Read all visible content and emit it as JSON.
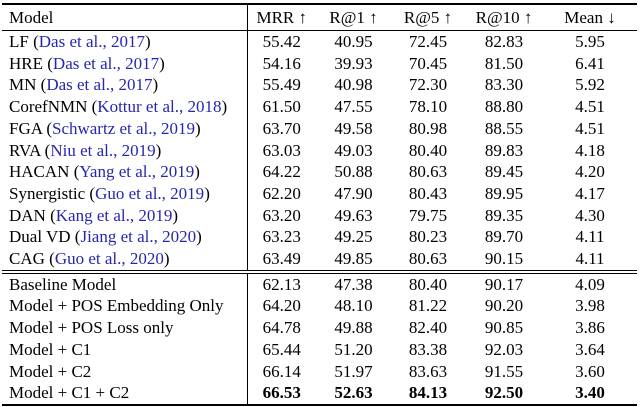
{
  "colors": {
    "citation_link": "#2626b0",
    "text": "#000000",
    "rule": "#000000",
    "background": "#ffffff"
  },
  "table": {
    "columns": [
      "Model",
      "MRR ↑",
      "R@1 ↑",
      "R@5 ↑",
      "R@10 ↑",
      "Mean ↓"
    ],
    "sections": [
      {
        "rows": [
          {
            "label": [
              {
                "text": "LF (",
                "style": "plain"
              },
              {
                "text": "Das et al., 2017",
                "style": "cite"
              },
              {
                "text": ")",
                "style": "plain"
              }
            ],
            "values": [
              "55.42",
              "40.95",
              "72.45",
              "82.83",
              "5.95"
            ]
          },
          {
            "label": [
              {
                "text": "HRE (",
                "style": "plain"
              },
              {
                "text": "Das et al., 2017",
                "style": "cite"
              },
              {
                "text": ")",
                "style": "plain"
              }
            ],
            "values": [
              "54.16",
              "39.93",
              "70.45",
              "81.50",
              "6.41"
            ]
          },
          {
            "label": [
              {
                "text": "MN (",
                "style": "plain"
              },
              {
                "text": "Das et al., 2017",
                "style": "cite"
              },
              {
                "text": ")",
                "style": "plain"
              }
            ],
            "values": [
              "55.49",
              "40.98",
              "72.30",
              "83.30",
              "5.92"
            ]
          },
          {
            "label": [
              {
                "text": "CorefNMN (",
                "style": "plain"
              },
              {
                "text": "Kottur et al., 2018",
                "style": "cite"
              },
              {
                "text": ")",
                "style": "plain"
              }
            ],
            "values": [
              "61.50",
              "47.55",
              "78.10",
              "88.80",
              "4.51"
            ]
          },
          {
            "label": [
              {
                "text": "FGA (",
                "style": "plain"
              },
              {
                "text": "Schwartz et al., 2019",
                "style": "cite"
              },
              {
                "text": ")",
                "style": "plain"
              }
            ],
            "values": [
              "63.70",
              "49.58",
              "80.98",
              "88.55",
              "4.51"
            ]
          },
          {
            "label": [
              {
                "text": "RVA (",
                "style": "plain"
              },
              {
                "text": "Niu et al., 2019",
                "style": "cite"
              },
              {
                "text": ")",
                "style": "plain"
              }
            ],
            "values": [
              "63.03",
              "49.03",
              "80.40",
              "89.83",
              "4.18"
            ]
          },
          {
            "label": [
              {
                "text": "HACAN (",
                "style": "plain"
              },
              {
                "text": "Yang et al., 2019",
                "style": "cite"
              },
              {
                "text": ")",
                "style": "plain"
              }
            ],
            "values": [
              "64.22",
              "50.88",
              "80.63",
              "89.45",
              "4.20"
            ]
          },
          {
            "label": [
              {
                "text": "Synergistic (",
                "style": "plain"
              },
              {
                "text": "Guo et al., 2019",
                "style": "cite"
              },
              {
                "text": ")",
                "style": "plain"
              }
            ],
            "values": [
              "62.20",
              "47.90",
              "80.43",
              "89.95",
              "4.17"
            ]
          },
          {
            "label": [
              {
                "text": "DAN (",
                "style": "plain"
              },
              {
                "text": "Kang et al., 2019",
                "style": "cite"
              },
              {
                "text": ")",
                "style": "plain"
              }
            ],
            "values": [
              "63.20",
              "49.63",
              "79.75",
              "89.35",
              "4.30"
            ]
          },
          {
            "label": [
              {
                "text": "Dual VD (",
                "style": "plain"
              },
              {
                "text": "Jiang et al., 2020",
                "style": "cite"
              },
              {
                "text": ")",
                "style": "plain"
              }
            ],
            "values": [
              "63.23",
              "49.25",
              "80.23",
              "89.70",
              "4.11"
            ]
          },
          {
            "label": [
              {
                "text": "CAG (",
                "style": "plain"
              },
              {
                "text": "Guo et al., 2020",
                "style": "cite"
              },
              {
                "text": ")",
                "style": "plain"
              }
            ],
            "values": [
              "63.49",
              "49.85",
              "80.63",
              "90.15",
              "4.11"
            ]
          }
        ]
      },
      {
        "rows": [
          {
            "label": [
              {
                "text": "Baseline Model",
                "style": "plain"
              }
            ],
            "values": [
              "62.13",
              "47.38",
              "80.40",
              "90.17",
              "4.09"
            ]
          },
          {
            "label": [
              {
                "text": "Model + POS Embedding Only",
                "style": "plain"
              }
            ],
            "values": [
              "64.20",
              "48.10",
              "81.22",
              "90.20",
              "3.98"
            ]
          },
          {
            "label": [
              {
                "text": "Model + POS Loss only",
                "style": "plain"
              }
            ],
            "values": [
              "64.78",
              "49.88",
              "82.40",
              "90.85",
              "3.86"
            ]
          },
          {
            "label": [
              {
                "text": "Model + C1",
                "style": "plain"
              }
            ],
            "values": [
              "65.44",
              "51.20",
              "83.38",
              "92.03",
              "3.64"
            ]
          },
          {
            "label": [
              {
                "text": "Model + C2",
                "style": "plain"
              }
            ],
            "values": [
              "66.14",
              "51.97",
              "83.63",
              "91.55",
              "3.60"
            ]
          },
          {
            "label": [
              {
                "text": "Model + C1 + C2",
                "style": "plain"
              }
            ],
            "values": [
              "66.53",
              "52.63",
              "84.13",
              "92.50",
              "3.40"
            ],
            "bold_values": true
          }
        ]
      }
    ]
  }
}
